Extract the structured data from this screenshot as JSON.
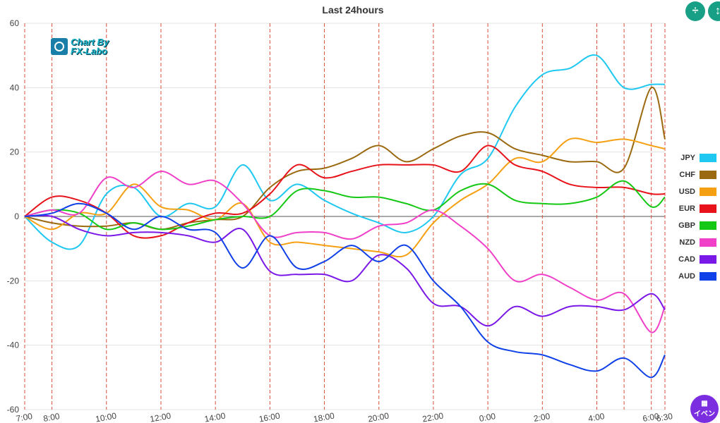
{
  "chart_data": {
    "type": "line",
    "title": "Last 24hours",
    "xlabel": "",
    "ylabel": "",
    "ylim": [
      -60,
      60
    ],
    "yticks": [
      60,
      40,
      20,
      0,
      -20,
      -40,
      -60
    ],
    "xlim": [
      0,
      23.5
    ],
    "xticks": [
      {
        "x": 0,
        "label": "7:00"
      },
      {
        "x": 1,
        "label": "8:00"
      },
      {
        "x": 3,
        "label": "10:00"
      },
      {
        "x": 5,
        "label": "12:00"
      },
      {
        "x": 7,
        "label": "14:00"
      },
      {
        "x": 9,
        "label": "16:00"
      },
      {
        "x": 11,
        "label": "18:00"
      },
      {
        "x": 13,
        "label": "20:00"
      },
      {
        "x": 15,
        "label": "22:00"
      },
      {
        "x": 17,
        "label": "0:00"
      },
      {
        "x": 19,
        "label": "2:00"
      },
      {
        "x": 21,
        "label": "4:00"
      },
      {
        "x": 23,
        "label": "6:00"
      },
      {
        "x": 23.5,
        "label": "6:30"
      }
    ],
    "vlines_x": [
      0,
      1,
      3,
      5,
      7,
      9,
      11,
      13,
      15,
      17,
      19,
      21,
      22,
      23,
      23.5
    ],
    "grid": true,
    "legend_position": "right",
    "x": [
      0,
      1,
      2,
      3,
      4,
      5,
      6,
      7,
      8,
      9,
      10,
      11,
      12,
      13,
      14,
      15,
      16,
      17,
      18,
      19,
      20,
      21,
      22,
      23,
      23.5
    ],
    "series": [
      {
        "name": "JPY",
        "color": "#1ec8f0",
        "values": [
          0,
          -8,
          -9,
          7,
          9,
          0,
          4,
          3,
          16,
          5,
          10,
          5,
          1,
          -2,
          -5,
          0,
          13,
          18,
          34,
          44,
          46,
          50,
          40,
          41,
          41
        ]
      },
      {
        "name": "CHF",
        "color": "#9b6a10",
        "values": [
          0,
          -2,
          -3,
          -3,
          -2,
          -4,
          -2,
          -1,
          0,
          9,
          14,
          15,
          18,
          22,
          17,
          21,
          25,
          26,
          21,
          19,
          17,
          17,
          15,
          40,
          24
        ]
      },
      {
        "name": "USD",
        "color": "#f5a012",
        "values": [
          0,
          -4,
          1,
          1,
          10,
          3,
          2,
          -1,
          4,
          -8,
          -8,
          -9,
          -10,
          -11,
          -12,
          -2,
          5,
          10,
          18,
          17,
          24,
          23,
          24,
          22,
          21
        ]
      },
      {
        "name": "EUR",
        "color": "#e8121a",
        "values": [
          0,
          6,
          5,
          1,
          -6,
          -6,
          -2,
          1,
          1,
          7,
          16,
          12,
          14,
          16,
          16,
          16,
          14,
          22,
          16,
          14,
          10,
          9,
          9,
          7,
          7
        ]
      },
      {
        "name": "GBP",
        "color": "#14c814",
        "values": [
          0,
          2,
          1,
          -4,
          -2,
          -4,
          -3,
          -1,
          0,
          0,
          8,
          8,
          6,
          6,
          4,
          2,
          8,
          10,
          5,
          4,
          4,
          6,
          11,
          3,
          6
        ]
      },
      {
        "name": "NZD",
        "color": "#f040c8",
        "values": [
          0,
          2,
          1,
          12,
          9,
          14,
          10,
          11,
          4,
          -6,
          -5,
          -5,
          -7,
          -3,
          -2,
          2,
          -3,
          -10,
          -20,
          -18,
          -22,
          -26,
          -24,
          -36,
          -28
        ]
      },
      {
        "name": "CAD",
        "color": "#7a18e8",
        "values": [
          0,
          0,
          -4,
          -6,
          -5,
          -5,
          -6,
          -8,
          -4,
          -17,
          -18,
          -18,
          -20,
          -12,
          -16,
          -27,
          -28,
          -34,
          -28,
          -31,
          -28,
          -28,
          -29,
          -24,
          -29
        ]
      },
      {
        "name": "AUD",
        "color": "#1040e8",
        "values": [
          0,
          1,
          4,
          1,
          -4,
          0,
          -4,
          -5,
          -16,
          -6,
          -16,
          -14,
          -9,
          -14,
          -9,
          -20,
          -28,
          -39,
          -42,
          -43,
          -46,
          -48,
          -44,
          -50,
          -43
        ]
      }
    ]
  },
  "ui": {
    "logo_line1": "Chart By",
    "logo_line2": "FX-Labo",
    "compress_icon": "compress-vertical-icon",
    "expand_icon": "expand-vertical-icon",
    "event_icon": "calendar-icon",
    "event_label": "イベン"
  }
}
